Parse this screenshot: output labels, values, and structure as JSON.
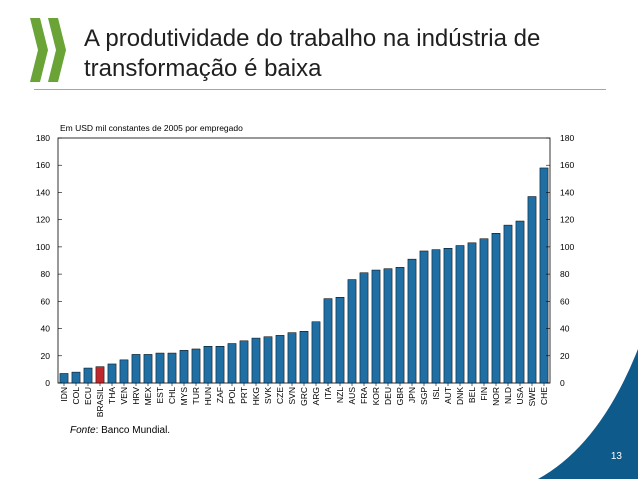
{
  "slide": {
    "title": "A produtividade do trabalho na indústria de transformação é baixa",
    "source_label": "Fonte",
    "source_text": ": Banco Mundial.",
    "page_number": "13",
    "logo_icon": "double-chevron-logo-icon"
  },
  "colors": {
    "bar": "#1f6fa5",
    "highlight_bar": "#c0272d",
    "logo": "#6aa437",
    "corner": "#0e5a8a"
  },
  "chart_data": {
    "type": "bar",
    "unit_label": "Em USD mil constantes de 2005 por empregado",
    "categories": [
      "IDN",
      "COL",
      "ECU",
      "BRASIL",
      "THA",
      "VEN",
      "HRV",
      "MEX",
      "EST",
      "CHL",
      "MYS",
      "TUR",
      "HUN",
      "ZAF",
      "POL",
      "PRT",
      "HKG",
      "SVK",
      "CZE",
      "SVN",
      "GRC",
      "ARG",
      "ITA",
      "NZL",
      "AUS",
      "FRA",
      "KOR",
      "DEU",
      "GBR",
      "JPN",
      "SGP",
      "ISL",
      "AUT",
      "DNK",
      "BEL",
      "FIN",
      "NOR",
      "NLD",
      "USA",
      "SWE",
      "CHE"
    ],
    "values": [
      7,
      8,
      11,
      12,
      14,
      17,
      21,
      21,
      22,
      22,
      24,
      25,
      27,
      27,
      29,
      31,
      33,
      34,
      35,
      37,
      38,
      45,
      62,
      63,
      76,
      81,
      83,
      84,
      85,
      91,
      97,
      98,
      99,
      101,
      103,
      106,
      110,
      116,
      119,
      137,
      158
    ],
    "highlight_category": "BRASIL",
    "ylim": [
      0,
      180
    ],
    "yticks": [
      0,
      20,
      40,
      60,
      80,
      100,
      120,
      140,
      160,
      180
    ],
    "secondary_axis": true,
    "grid": false,
    "legend": "none"
  }
}
